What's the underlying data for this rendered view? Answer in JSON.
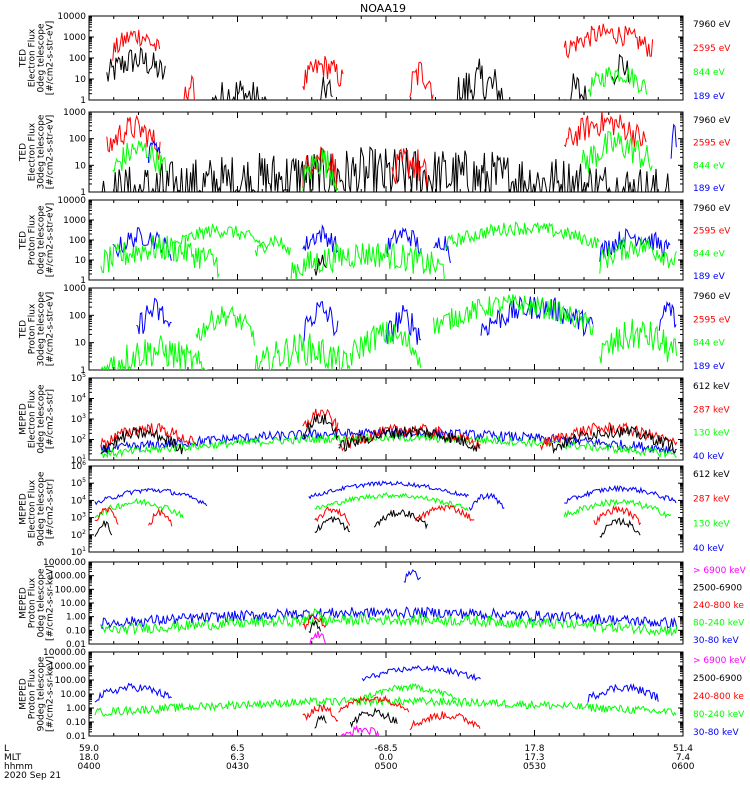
{
  "title": "NOAA19",
  "colors": {
    "black": "#000000",
    "red": "#ff0000",
    "green": "#00ff00",
    "blue": "#0000ff",
    "magenta": "#ff00ff"
  },
  "footer": {
    "row_labels": [
      "L",
      "MLT",
      "hhmm"
    ],
    "date": "2020 Sep 21",
    "l_values": [
      "59.0",
      "6.5",
      "-68.5",
      "17.8",
      "51.4"
    ],
    "mlt_values": [
      "18.0",
      "6.3",
      "0.0",
      "17.3",
      "7.4"
    ],
    "hhmm_values": [
      "0400",
      "0430",
      "0500",
      "0530",
      "0600"
    ]
  },
  "chart_data": [
    {
      "type": "line",
      "ylabel": [
        "TED",
        "Electron Flux",
        "0deg telescope",
        "[#/cm2-s-str-eV]"
      ],
      "yscale": "log",
      "ylim": [
        1,
        10000
      ],
      "yticks": [
        "10000",
        "1000",
        "100",
        "10",
        "1"
      ],
      "legend": [
        {
          "name": "7960 eV",
          "color": "#000000"
        },
        {
          "name": "2595 eV",
          "color": "#ff0000"
        },
        {
          "name": "844 eV",
          "color": "#00ff00"
        },
        {
          "name": "189 eV",
          "color": "#0000ff"
        }
      ],
      "series": [
        {
          "name": "7960 eV",
          "color": "#000000",
          "bursts": [
            [
              0.03,
              0.13,
              80,
              0.7
            ],
            [
              0.2,
              0.3,
              2,
              0.9
            ],
            [
              0.39,
              0.41,
              4,
              0.8
            ],
            [
              0.62,
              0.7,
              6,
              1.2
            ],
            [
              0.8,
              0.84,
              3,
              0.9
            ],
            [
              0.88,
              0.91,
              60,
              0.7
            ]
          ]
        },
        {
          "name": "2595 eV",
          "color": "#ff0000",
          "bursts": [
            [
              0.04,
              0.12,
              1200,
              0.5
            ],
            [
              0.16,
              0.18,
              5,
              0.6
            ],
            [
              0.36,
              0.43,
              40,
              0.6
            ],
            [
              0.54,
              0.58,
              20,
              0.8
            ],
            [
              0.8,
              0.95,
              1500,
              0.5
            ]
          ]
        },
        {
          "name": "844 eV",
          "color": "#00ff00",
          "bursts": [
            [
              0.84,
              0.94,
              20,
              0.5
            ]
          ]
        }
      ]
    },
    {
      "type": "line",
      "ylabel": [
        "TED",
        "Electron Flux",
        "30deg telescope",
        "[#/cm2-s-str-eV]"
      ],
      "yscale": "log",
      "ylim": [
        1,
        1000
      ],
      "yticks": [
        "1000",
        "100",
        "10",
        "1"
      ],
      "legend": [
        {
          "name": "7960 eV",
          "color": "#000000"
        },
        {
          "name": "2595 eV",
          "color": "#ff0000"
        },
        {
          "name": "844 eV",
          "color": "#00ff00"
        },
        {
          "name": "189 eV",
          "color": "#0000ff"
        }
      ],
      "series": [
        {
          "name": "7960 eV",
          "color": "#000000",
          "bursts": [
            [
              0.02,
              0.98,
              4,
              1.1
            ]
          ]
        },
        {
          "name": "2595 eV",
          "color": "#ff0000",
          "bursts": [
            [
              0.03,
              0.12,
              250,
              0.5
            ],
            [
              0.36,
              0.42,
              25,
              0.6
            ],
            [
              0.51,
              0.57,
              15,
              0.7
            ],
            [
              0.8,
              0.94,
              400,
              0.5
            ]
          ]
        },
        {
          "name": "844 eV",
          "color": "#00ff00",
          "bursts": [
            [
              0.04,
              0.13,
              40,
              0.5
            ],
            [
              0.36,
              0.42,
              15,
              0.6
            ],
            [
              0.83,
              0.95,
              60,
              0.6
            ]
          ]
        },
        {
          "name": "189 eV",
          "color": "#0000ff",
          "bursts": [
            [
              0.1,
              0.12,
              90,
              0.3
            ],
            [
              0.98,
              0.99,
              200,
              0.3
            ]
          ]
        }
      ]
    },
    {
      "type": "line",
      "ylabel": [
        "TED",
        "Proton Flux",
        "0deg telescope",
        "[#/cm2-s-str-eV]"
      ],
      "yscale": "log",
      "ylim": [
        1,
        10000
      ],
      "yticks": [
        "10000",
        "1000",
        "100",
        "10",
        "1"
      ],
      "legend": [
        {
          "name": "7960 eV",
          "color": "#000000"
        },
        {
          "name": "2595 eV",
          "color": "#ff0000"
        },
        {
          "name": "844 eV",
          "color": "#00ff00"
        },
        {
          "name": "189 eV",
          "color": "#0000ff"
        }
      ],
      "series": [
        {
          "name": "189 eV",
          "color": "#0000ff",
          "bursts": [
            [
              0.04,
              0.14,
              150,
              0.5
            ],
            [
              0.36,
              0.42,
              200,
              0.5
            ],
            [
              0.5,
              0.56,
              200,
              0.5
            ],
            [
              0.58,
              0.61,
              100,
              0.5
            ],
            [
              0.86,
              0.98,
              150,
              0.5
            ]
          ]
        },
        {
          "name": "844 eV",
          "color": "#00ff00",
          "bursts": [
            [
              0.02,
              0.22,
              40,
              0.7
            ],
            [
              0.14,
              0.3,
              300,
              0.35
            ],
            [
              0.28,
              0.34,
              100,
              0.4
            ],
            [
              0.34,
              0.6,
              20,
              0.7
            ],
            [
              0.6,
              0.86,
              400,
              0.35
            ],
            [
              0.86,
              0.99,
              50,
              0.6
            ]
          ]
        },
        {
          "name": "7960 eV",
          "color": "#000000",
          "bursts": [
            [
              0.38,
              0.4,
              10,
              0.4
            ]
          ]
        }
      ]
    },
    {
      "type": "line",
      "ylabel": [
        "TED",
        "Proton Flux",
        "30deg telescope",
        "[#/cm2-s-str-eV]"
      ],
      "yscale": "log",
      "ylim": [
        1,
        1000
      ],
      "yticks": [
        "1000",
        "100",
        "10",
        "1"
      ],
      "legend": [
        {
          "name": "7960 eV",
          "color": "#000000"
        },
        {
          "name": "2595 eV",
          "color": "#ff0000"
        },
        {
          "name": "844 eV",
          "color": "#00ff00"
        },
        {
          "name": "189 eV",
          "color": "#0000ff"
        }
      ],
      "series": [
        {
          "name": "189 eV",
          "color": "#0000ff",
          "bursts": [
            [
              0.08,
              0.14,
              150,
              0.5
            ],
            [
              0.36,
              0.42,
              150,
              0.5
            ],
            [
              0.5,
              0.56,
              80,
              0.5
            ],
            [
              0.66,
              0.85,
              200,
              0.45
            ],
            [
              0.96,
              0.99,
              200,
              0.4
            ]
          ]
        },
        {
          "name": "844 eV",
          "color": "#00ff00",
          "bursts": [
            [
              0.02,
              0.2,
              5,
              0.6
            ],
            [
              0.18,
              0.28,
              100,
              0.4
            ],
            [
              0.28,
              0.44,
              6,
              0.6
            ],
            [
              0.44,
              0.56,
              20,
              0.5
            ],
            [
              0.58,
              0.85,
              250,
              0.4
            ],
            [
              0.86,
              0.99,
              20,
              0.6
            ]
          ]
        }
      ]
    },
    {
      "type": "line",
      "ylabel": [
        "MEPED",
        "Electron Flux",
        "0deg telescope",
        "[#/cm2-s-str]"
      ],
      "yscale": "log",
      "ylim": [
        10,
        100000
      ],
      "yticks": [
        "10^5",
        "10^4",
        "10^3",
        "10^2",
        "10^1"
      ],
      "legend": [
        {
          "name": "612 keV",
          "color": "#000000"
        },
        {
          "name": "287 keV",
          "color": "#ff0000"
        },
        {
          "name": "130 keV",
          "color": "#00ff00"
        },
        {
          "name": "40 keV",
          "color": "#0000ff"
        }
      ],
      "series": [
        {
          "name": "40 keV",
          "color": "#0000ff",
          "bursts": [
            [
              0.02,
              0.99,
              200,
              0.25
            ]
          ]
        },
        {
          "name": "130 keV",
          "color": "#00ff00",
          "bursts": [
            [
              0.02,
              0.99,
              120,
              0.2
            ]
          ]
        },
        {
          "name": "287 keV",
          "color": "#ff0000",
          "bursts": [
            [
              0.02,
              0.18,
              350,
              0.3
            ],
            [
              0.36,
              0.42,
              2000,
              0.3
            ],
            [
              0.42,
              0.66,
              300,
              0.3
            ],
            [
              0.76,
              0.99,
              350,
              0.3
            ]
          ]
        },
        {
          "name": "612 keV",
          "color": "#000000",
          "bursts": [
            [
              0.02,
              0.16,
              200,
              0.3
            ],
            [
              0.36,
              0.42,
              1000,
              0.3
            ],
            [
              0.42,
              0.66,
              250,
              0.3
            ],
            [
              0.78,
              0.99,
              250,
              0.3
            ]
          ]
        }
      ]
    },
    {
      "type": "line",
      "ylabel": [
        "MEPED",
        "Electron Flux",
        "90deg telescope",
        "[#/cm2-s-str]"
      ],
      "yscale": "log",
      "ylim": [
        10,
        1000000
      ],
      "yticks": [
        "10^6",
        "10^5",
        "10^4",
        "10^3",
        "10^2",
        "10^1"
      ],
      "legend": [
        {
          "name": "612 keV",
          "color": "#000000"
        },
        {
          "name": "287 keV",
          "color": "#ff0000"
        },
        {
          "name": "130 keV",
          "color": "#00ff00"
        },
        {
          "name": "40 keV",
          "color": "#0000ff"
        }
      ],
      "series": [
        {
          "name": "40 keV",
          "color": "#0000ff",
          "bursts": [
            [
              0.01,
              0.2,
              40000,
              0.15
            ],
            [
              0.37,
              0.64,
              100000,
              0.12
            ],
            [
              0.64,
              0.7,
              20000,
              0.2
            ],
            [
              0.8,
              0.99,
              50000,
              0.15
            ]
          ]
        },
        {
          "name": "130 keV",
          "color": "#00ff00",
          "bursts": [
            [
              0.01,
              0.16,
              8000,
              0.2
            ],
            [
              0.38,
              0.64,
              20000,
              0.15
            ],
            [
              0.8,
              0.98,
              8000,
              0.2
            ]
          ]
        },
        {
          "name": "287 keV",
          "color": "#ff0000",
          "bursts": [
            [
              0.01,
              0.05,
              3000,
              0.2
            ],
            [
              0.1,
              0.14,
              2000,
              0.2
            ],
            [
              0.38,
              0.44,
              3000,
              0.2
            ],
            [
              0.55,
              0.65,
              4000,
              0.2
            ],
            [
              0.85,
              0.93,
              3000,
              0.2
            ]
          ]
        },
        {
          "name": "612 keV",
          "color": "#000000",
          "bursts": [
            [
              0.01,
              0.04,
              500,
              0.2
            ],
            [
              0.38,
              0.44,
              800,
              0.2
            ],
            [
              0.48,
              0.57,
              2000,
              0.2
            ],
            [
              0.86,
              0.93,
              600,
              0.2
            ]
          ]
        }
      ]
    },
    {
      "type": "line",
      "ylabel": [
        "MEPED",
        "Proton Flux",
        "0deg telescope",
        "[#/cm2-s-sr-keV]"
      ],
      "yscale": "log",
      "ylim": [
        0.01,
        10000
      ],
      "yticks": [
        "10000.00",
        "1000.00",
        "100.00",
        "10.00",
        "1.00",
        "0.10",
        "0.01"
      ],
      "legend": [
        {
          "name": "> 6900 keV",
          "color": "#ff00ff"
        },
        {
          "name": "2500-6900",
          "color": "#000000"
        },
        {
          "name": "240-800 ke",
          "color": "#ff0000"
        },
        {
          "name": "80-240 keV",
          "color": "#00ff00"
        },
        {
          "name": "30-80 keV",
          "color": "#0000ff"
        }
      ],
      "series": [
        {
          "name": "30-80 keV",
          "color": "#0000ff",
          "bursts": [
            [
              0.02,
              0.99,
              2,
              0.4
            ],
            [
              0.53,
              0.56,
              2000,
              0.3
            ]
          ]
        },
        {
          "name": "80-240 keV",
          "color": "#00ff00",
          "bursts": [
            [
              0.02,
              0.99,
              0.6,
              0.4
            ],
            [
              0.36,
              0.4,
              2,
              0.3
            ]
          ]
        },
        {
          "name": "240-800 keV",
          "color": "#ff0000",
          "bursts": [
            [
              0.36,
              0.4,
              0.8,
              0.3
            ]
          ]
        },
        {
          "name": "2500-6900",
          "color": "#000000",
          "bursts": [
            [
              0.37,
              0.39,
              0.3,
              0.3
            ]
          ]
        },
        {
          "name": "> 6900 keV",
          "color": "#ff00ff",
          "bursts": [
            [
              0.37,
              0.4,
              0.05,
              0.3
            ]
          ]
        }
      ]
    },
    {
      "type": "line",
      "ylabel": [
        "MEPED",
        "Proton Flux",
        "90deg telescope",
        "[#/cm2-s-sr-keV]"
      ],
      "yscale": "log",
      "ylim": [
        0.01,
        10000
      ],
      "yticks": [
        "10000.00",
        "1000.00",
        "100.00",
        "10.00",
        "1.00",
        "0.10",
        "0.01"
      ],
      "legend": [
        {
          "name": "> 6900 keV",
          "color": "#ff00ff"
        },
        {
          "name": "2500-6900",
          "color": "#000000"
        },
        {
          "name": "240-800 ke",
          "color": "#ff0000"
        },
        {
          "name": "80-240 keV",
          "color": "#00ff00"
        },
        {
          "name": "30-80 keV",
          "color": "#0000ff"
        }
      ],
      "series": [
        {
          "name": "30-80 keV",
          "color": "#0000ff",
          "bursts": [
            [
              0.01,
              0.14,
              30,
              0.3
            ],
            [
              0.46,
              0.66,
              700,
              0.2
            ],
            [
              0.84,
              0.96,
              30,
              0.3
            ]
          ]
        },
        {
          "name": "80-240 keV",
          "color": "#00ff00",
          "bursts": [
            [
              0.01,
              0.99,
              3,
              0.3
            ],
            [
              0.46,
              0.62,
              30,
              0.25
            ]
          ]
        },
        {
          "name": "240-800 keV",
          "color": "#ff0000",
          "bursts": [
            [
              0.36,
              0.42,
              1,
              0.3
            ],
            [
              0.42,
              0.54,
              5,
              0.25
            ],
            [
              0.54,
              0.66,
              0.3,
              0.3
            ]
          ]
        },
        {
          "name": "2500-6900",
          "color": "#000000",
          "bursts": [
            [
              0.38,
              0.4,
              0.3,
              0.3
            ],
            [
              0.44,
              0.52,
              0.5,
              0.3
            ]
          ]
        },
        {
          "name": "> 6900 keV",
          "color": "#ff00ff",
          "bursts": [
            [
              0.42,
              0.5,
              0.03,
              0.3
            ]
          ]
        }
      ]
    }
  ]
}
